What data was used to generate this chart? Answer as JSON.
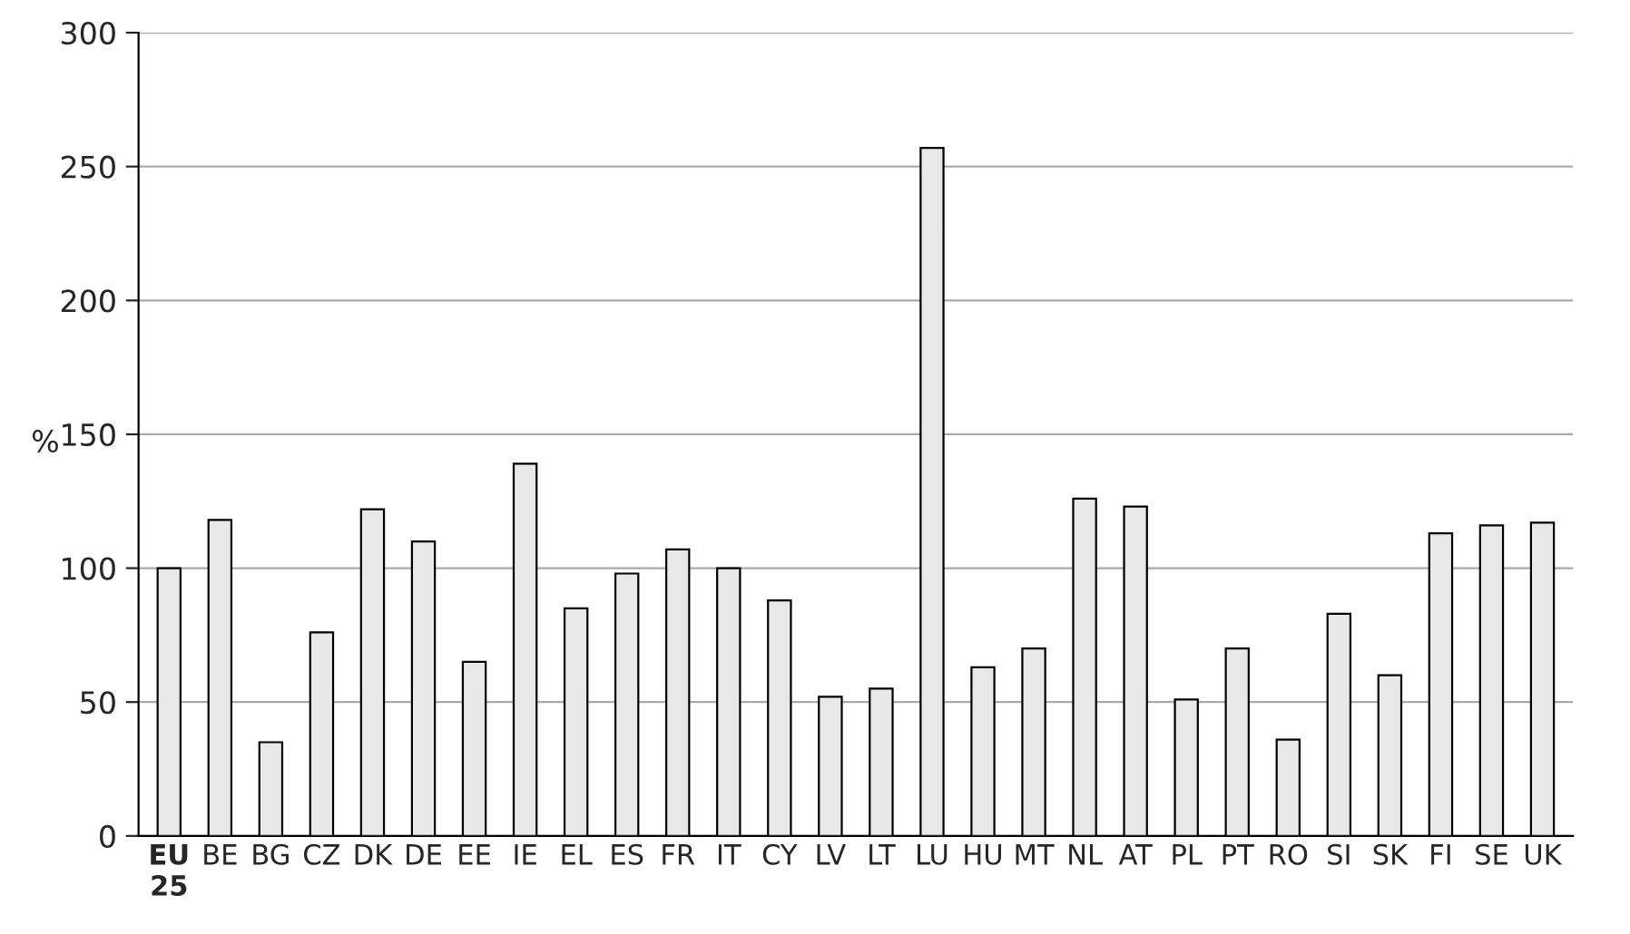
{
  "chart_data": {
    "type": "bar",
    "ylabel": "%",
    "categories": [
      "EU\n25",
      "BE",
      "BG",
      "CZ",
      "DK",
      "DE",
      "EE",
      "IE",
      "EL",
      "ES",
      "FR",
      "IT",
      "CY",
      "LV",
      "LT",
      "LU",
      "HU",
      "MT",
      "NL",
      "AT",
      "PL",
      "PT",
      "RO",
      "SI",
      "SK",
      "FI",
      "SE",
      "UK"
    ],
    "values": [
      100,
      118,
      35,
      76,
      122,
      110,
      65,
      139,
      85,
      98,
      107,
      100,
      88,
      52,
      55,
      257,
      63,
      70,
      126,
      123,
      51,
      70,
      36,
      83,
      60,
      113,
      116,
      117
    ],
    "color": "#e8e8e8",
    "ylim": [
      0,
      300
    ],
    "yticks": [
      0,
      50,
      100,
      150,
      200,
      250,
      300
    ],
    "grid": "y",
    "legend": false
  }
}
